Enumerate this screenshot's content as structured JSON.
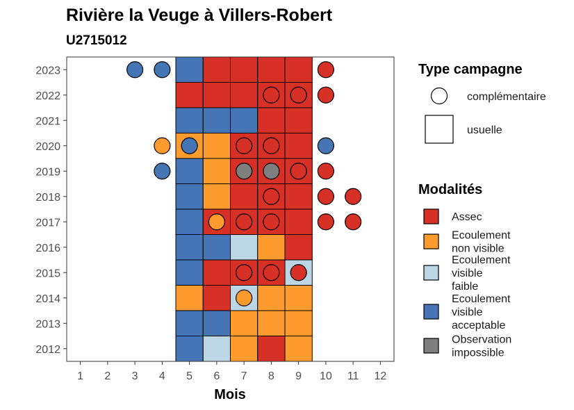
{
  "chart_data": {
    "type": "heatmap",
    "title": "Rivière la Veuge à Villers-Robert",
    "subtitle": "U2715012",
    "xlabel": "Mois",
    "ylabel": "",
    "x_ticks": [
      1,
      2,
      3,
      4,
      5,
      6,
      7,
      8,
      9,
      10,
      11,
      12
    ],
    "y_ticks": [
      2012,
      2013,
      2014,
      2015,
      2016,
      2017,
      2018,
      2019,
      2020,
      2021,
      2022,
      2023
    ],
    "xlim": [
      0.5,
      12.5
    ],
    "ylim": [
      2011.5,
      2023.5
    ],
    "grid": false,
    "colors": {
      "Assec": "#d73027",
      "Ecoulement non visible": "#fd9b2f",
      "Ecoulement visible faible": "#bcd6e6",
      "Ecoulement visible acceptable": "#4575b4",
      "Observation impossible": "#7f7f7f"
    },
    "usuelle": [
      {
        "year": 2023,
        "months": [
          5,
          6,
          7,
          8,
          9
        ],
        "values": [
          "Ecoulement visible acceptable",
          "Assec",
          "Assec",
          "Assec",
          "Assec"
        ]
      },
      {
        "year": 2022,
        "months": [
          5,
          6,
          7,
          8,
          9
        ],
        "values": [
          "Assec",
          "Assec",
          "Assec",
          "Assec",
          "Assec"
        ]
      },
      {
        "year": 2021,
        "months": [
          5,
          6,
          7,
          8,
          9
        ],
        "values": [
          "Ecoulement visible acceptable",
          "Ecoulement visible acceptable",
          "Ecoulement visible acceptable",
          "Assec",
          "Assec"
        ]
      },
      {
        "year": 2020,
        "months": [
          5,
          6,
          7,
          8,
          9
        ],
        "values": [
          "Ecoulement non visible",
          "Ecoulement non visible",
          "Assec",
          "Assec",
          "Assec"
        ]
      },
      {
        "year": 2019,
        "months": [
          5,
          6,
          7,
          8,
          9
        ],
        "values": [
          "Ecoulement visible acceptable",
          "Ecoulement non visible",
          "Assec",
          "Assec",
          "Assec"
        ]
      },
      {
        "year": 2018,
        "months": [
          5,
          6,
          7,
          8,
          9
        ],
        "values": [
          "Ecoulement visible acceptable",
          "Ecoulement non visible",
          "Assec",
          "Assec",
          "Assec"
        ]
      },
      {
        "year": 2017,
        "months": [
          5,
          6,
          7,
          8,
          9
        ],
        "values": [
          "Ecoulement visible acceptable",
          "Assec",
          "Assec",
          "Assec",
          "Assec"
        ]
      },
      {
        "year": 2016,
        "months": [
          5,
          6,
          7,
          8,
          9
        ],
        "values": [
          "Ecoulement visible acceptable",
          "Ecoulement visible acceptable",
          "Ecoulement visible faible",
          "Ecoulement non visible",
          "Assec"
        ]
      },
      {
        "year": 2015,
        "months": [
          5,
          6,
          7,
          8,
          9
        ],
        "values": [
          "Ecoulement visible acceptable",
          "Assec",
          "Assec",
          "Assec",
          "Ecoulement visible faible"
        ]
      },
      {
        "year": 2014,
        "months": [
          5,
          6,
          7,
          8,
          9
        ],
        "values": [
          "Ecoulement non visible",
          "Assec",
          "Ecoulement visible faible",
          "Ecoulement non visible",
          "Ecoulement non visible"
        ]
      },
      {
        "year": 2013,
        "months": [
          5,
          6,
          7,
          8,
          9
        ],
        "values": [
          "Ecoulement visible acceptable",
          "Ecoulement visible acceptable",
          "Ecoulement non visible",
          "Ecoulement non visible",
          "Ecoulement non visible"
        ]
      },
      {
        "year": 2012,
        "months": [
          5,
          6,
          7,
          8,
          9
        ],
        "values": [
          "Ecoulement visible acceptable",
          "Ecoulement visible faible",
          "Ecoulement non visible",
          "Assec",
          "Ecoulement non visible"
        ]
      }
    ],
    "complementaire": [
      {
        "year": 2023,
        "month": 3,
        "value": "Ecoulement visible acceptable"
      },
      {
        "year": 2023,
        "month": 4,
        "value": "Ecoulement visible acceptable"
      },
      {
        "year": 2023,
        "month": 10,
        "value": "Assec"
      },
      {
        "year": 2022,
        "month": 8,
        "value": "Assec"
      },
      {
        "year": 2022,
        "month": 9,
        "value": "Assec"
      },
      {
        "year": 2022,
        "month": 10,
        "value": "Assec"
      },
      {
        "year": 2020,
        "month": 4,
        "value": "Ecoulement non visible"
      },
      {
        "year": 2020,
        "month": 5,
        "value": "Ecoulement visible acceptable"
      },
      {
        "year": 2020,
        "month": 7,
        "value": "Assec"
      },
      {
        "year": 2020,
        "month": 8,
        "value": "Assec"
      },
      {
        "year": 2020,
        "month": 10,
        "value": "Ecoulement visible acceptable"
      },
      {
        "year": 2019,
        "month": 4,
        "value": "Ecoulement visible acceptable"
      },
      {
        "year": 2019,
        "month": 7,
        "value": "Observation impossible"
      },
      {
        "year": 2019,
        "month": 8,
        "value": "Observation impossible"
      },
      {
        "year": 2019,
        "month": 9,
        "value": "Assec"
      },
      {
        "year": 2019,
        "month": 10,
        "value": "Assec"
      },
      {
        "year": 2018,
        "month": 8,
        "value": "Assec"
      },
      {
        "year": 2018,
        "month": 10,
        "value": "Assec"
      },
      {
        "year": 2018,
        "month": 11,
        "value": "Assec"
      },
      {
        "year": 2017,
        "month": 6,
        "value": "Ecoulement non visible"
      },
      {
        "year": 2017,
        "month": 7,
        "value": "Assec"
      },
      {
        "year": 2017,
        "month": 8,
        "value": "Assec"
      },
      {
        "year": 2017,
        "month": 10,
        "value": "Assec"
      },
      {
        "year": 2017,
        "month": 11,
        "value": "Assec"
      },
      {
        "year": 2015,
        "month": 7,
        "value": "Assec"
      },
      {
        "year": 2015,
        "month": 8,
        "value": "Assec"
      },
      {
        "year": 2015,
        "month": 9,
        "value": "Assec"
      },
      {
        "year": 2014,
        "month": 7,
        "value": "Ecoulement non visible"
      }
    ],
    "legend_campagne": {
      "title": "Type campagne",
      "items": [
        "complémentaire",
        "usuelle"
      ]
    },
    "legend_modalites": {
      "title": "Modalités",
      "items": [
        {
          "key": "Assec",
          "lines": [
            "Assec"
          ]
        },
        {
          "key": "Ecoulement non visible",
          "lines": [
            "Ecoulement",
            "non visible"
          ]
        },
        {
          "key": "Ecoulement visible faible",
          "lines": [
            "Ecoulement",
            "visible",
            "faible"
          ]
        },
        {
          "key": "Ecoulement visible acceptable",
          "lines": [
            "Ecoulement",
            "visible",
            "acceptable"
          ]
        },
        {
          "key": "Observation impossible",
          "lines": [
            "Observation",
            "impossible"
          ]
        }
      ]
    },
    "legend_placement": "right"
  }
}
